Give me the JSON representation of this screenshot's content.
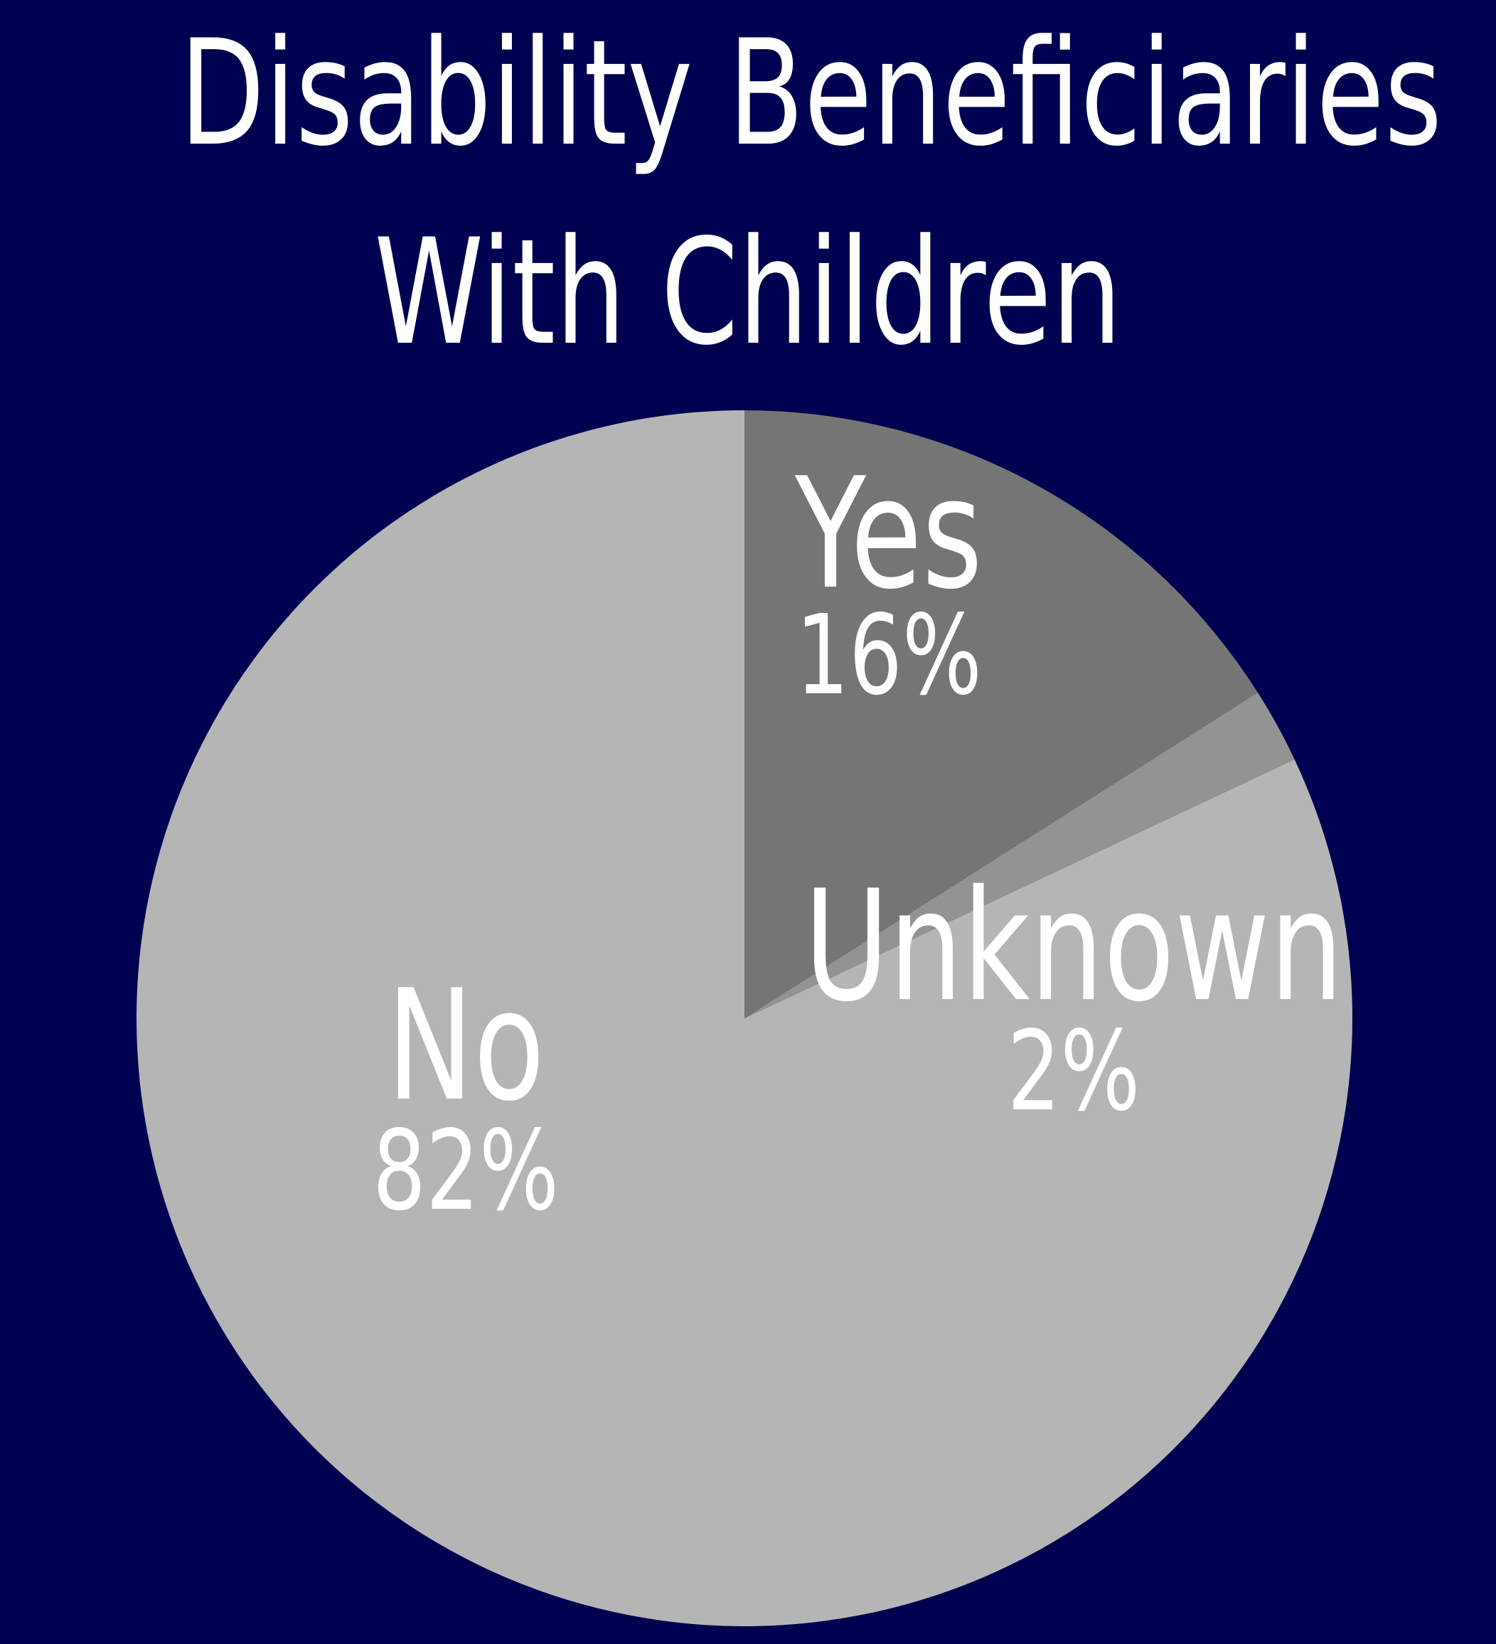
{
  "title_lines": [
    "Disability Beneficiaries",
    "With Children"
  ],
  "colors": {
    "background": "#000050",
    "text": "#ffffff"
  },
  "chart_data": {
    "type": "pie",
    "title": "Disability Beneficiaries With Children",
    "start_angle_deg": 0,
    "direction": "clockwise",
    "legend": "none",
    "slices": [
      {
        "label": "Yes",
        "value": 16,
        "value_label": "16%",
        "color": "#757575"
      },
      {
        "label": "Unknown",
        "value": 2,
        "value_label": "2%",
        "color": "#939393"
      },
      {
        "label": "No",
        "value": 82,
        "value_label": "82%",
        "color": "#b5b5b5"
      }
    ]
  }
}
